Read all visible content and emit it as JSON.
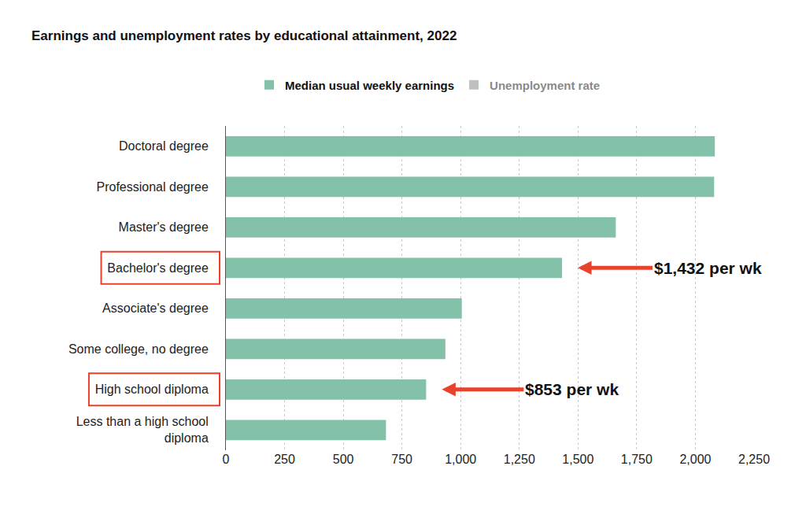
{
  "chart_data": {
    "type": "bar",
    "orientation": "horizontal",
    "title": "Earnings and unemployment rates by educational attainment, 2022",
    "categories": [
      "Doctoral degree",
      "Professional degree",
      "Master's degree",
      "Bachelor's degree",
      "Associate's degree",
      "Some college, no degree",
      "High school diploma",
      "Less than a high school diploma"
    ],
    "series": [
      {
        "name": "Median usual weekly earnings",
        "color": "#84c1a9",
        "values": [
          2083,
          2080,
          1661,
          1432,
          1005,
          935,
          853,
          682
        ]
      },
      {
        "name": "Unemployment rate",
        "color": "#808080",
        "values": [
          null,
          null,
          null,
          null,
          null,
          null,
          null,
          null
        ]
      }
    ],
    "xlim": [
      0,
      2250
    ],
    "xticks": [
      0,
      250,
      500,
      750,
      {
        "value": 1000,
        "label": "1,000"
      },
      {
        "value": 1250,
        "label": "1,250"
      },
      {
        "value": 1500,
        "label": "1,500"
      },
      {
        "value": 1750,
        "label": "1,750"
      },
      {
        "value": 2000,
        "label": "2,000"
      },
      {
        "value": 2250,
        "label": "2,250"
      }
    ],
    "grid": true,
    "legend": "top",
    "annotations": [
      {
        "text": "$1,432 per wk",
        "category": "Bachelor's degree"
      },
      {
        "text": "$853 per wk",
        "category": "High school diploma"
      }
    ]
  }
}
